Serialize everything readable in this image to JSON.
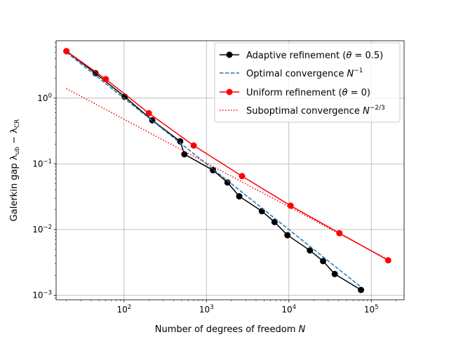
{
  "chart_data": {
    "type": "line",
    "xscale": "log",
    "yscale": "log",
    "xlim": [
      15,
      250000
    ],
    "ylim": [
      0.00085,
      7.5
    ],
    "grid": true,
    "legend_placement": "top-right",
    "xlabel_parts": [
      "Number of degrees of freedom ",
      "N"
    ],
    "ylabel_parts": [
      "Galerkin gap λ",
      "ub",
      " − λ",
      "CR"
    ],
    "x_ticks": [
      {
        "value": 100,
        "base": "10",
        "exp": "2"
      },
      {
        "value": 1000,
        "base": "10",
        "exp": "3"
      },
      {
        "value": 10000,
        "base": "10",
        "exp": "4"
      },
      {
        "value": 100000,
        "base": "10",
        "exp": "5"
      }
    ],
    "y_ticks": [
      {
        "value": 0.001,
        "base": "10",
        "exp": "−3"
      },
      {
        "value": 0.01,
        "base": "10",
        "exp": "−2"
      },
      {
        "value": 0.1,
        "base": "10",
        "exp": "−1"
      },
      {
        "value": 1,
        "base": "10",
        "exp": "0"
      }
    ],
    "series": [
      {
        "name": "Adaptive refinement (θ = 0.5)",
        "legend_parts": [
          "Adaptive refinement (",
          "θ",
          " = 0.5)"
        ],
        "style": "solid-marker",
        "color": "#000000",
        "x": [
          20,
          45,
          102,
          220,
          480,
          540,
          1200,
          1800,
          2500,
          4700,
          6700,
          9600,
          18000,
          26000,
          36000,
          75000
        ],
        "y": [
          5.2,
          2.4,
          1.05,
          0.46,
          0.22,
          0.14,
          0.08,
          0.052,
          0.032,
          0.019,
          0.013,
          0.0082,
          0.0048,
          0.0033,
          0.0021,
          0.0012
        ]
      },
      {
        "name": "Optimal convergence N^-1",
        "legend_parts": [
          "Optimal convergence ",
          "N",
          "−1"
        ],
        "style": "dashed",
        "color": "#1f77b4",
        "x": [
          20,
          75000
        ],
        "y": [
          5.0,
          0.00133
        ]
      },
      {
        "name": "Uniform refinement (θ = 0)",
        "legend_parts": [
          "Uniform refinement (",
          "θ",
          " = 0)"
        ],
        "style": "solid-marker",
        "color": "#ff0000",
        "x": [
          20,
          60,
          200,
          700,
          2700,
          10500,
          41000,
          160000
        ],
        "y": [
          5.2,
          1.95,
          0.59,
          0.19,
          0.065,
          0.023,
          0.0088,
          0.0034
        ]
      },
      {
        "name": "Suboptimal convergence N^-2/3",
        "legend_parts": [
          "Suboptimal convergence ",
          "N",
          "−2/3"
        ],
        "style": "dotted",
        "color": "#ff0000",
        "x": [
          20,
          160000
        ],
        "y": [
          1.4,
          0.00348
        ]
      }
    ]
  }
}
